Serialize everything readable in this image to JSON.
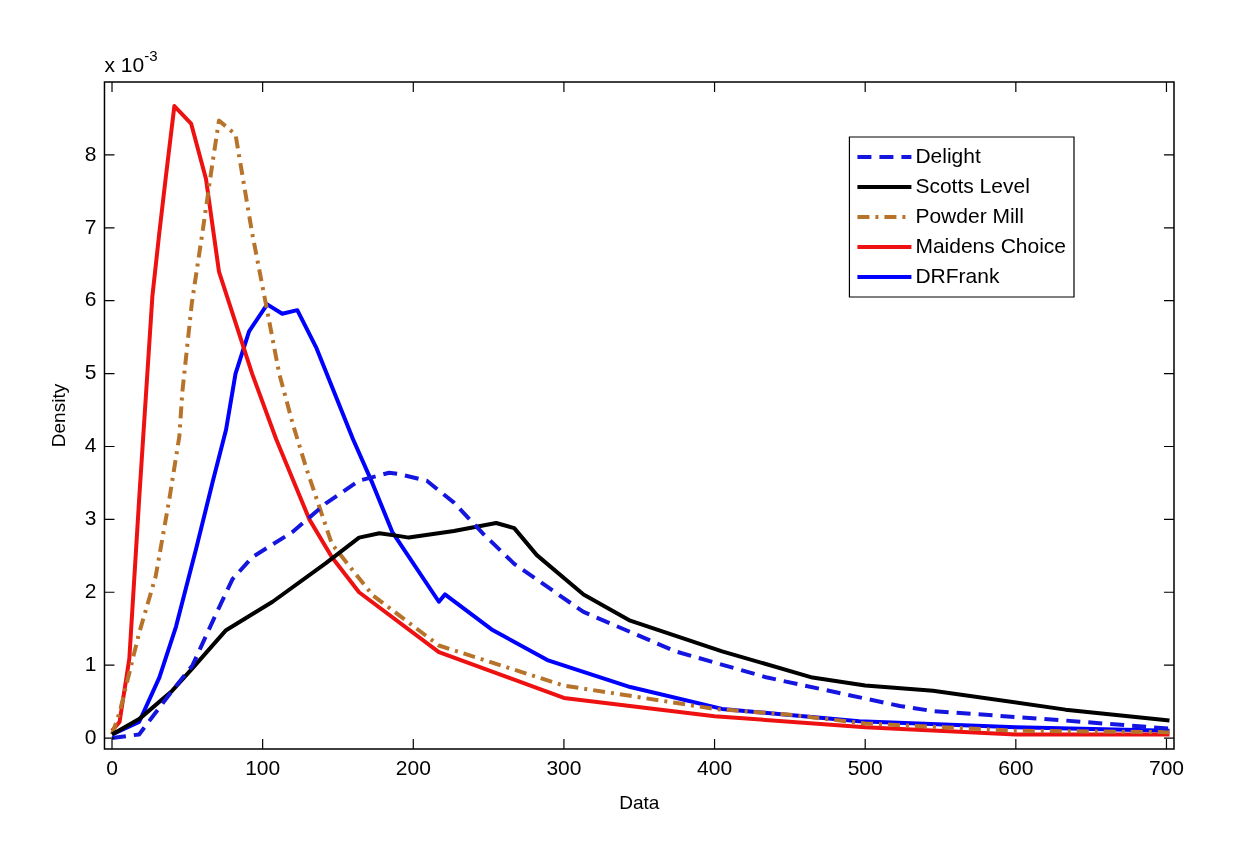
{
  "chart_data": {
    "type": "line",
    "xlabel": "Data",
    "ylabel": "Density",
    "annotations": [
      "x 10$^{-3}$"
    ],
    "xlim": [
      -5,
      705
    ],
    "xticks": [
      0,
      100,
      200,
      300,
      400,
      500,
      600,
      700
    ],
    "ylim": [
      -0.15,
      9
    ],
    "yticks": [
      0,
      1,
      2,
      3,
      4,
      5,
      6,
      7,
      8
    ],
    "grid": false,
    "legend": "top right",
    "marker": "none",
    "series": [
      {
        "name": "Delight",
        "color": "#1515e0",
        "line_style": "dashed",
        "x": [
          0,
          18,
          40,
          53.5,
          69,
          80,
          93,
          120,
          142,
          164,
          184,
          191,
          209,
          227,
          246,
          267,
          313,
          374,
          435,
          523,
          545,
          633,
          702
        ],
        "values": [
          0,
          0.05,
          0.65,
          1,
          1.7,
          2.18,
          2.48,
          2.83,
          3.22,
          3.53,
          3.64,
          3.62,
          3.53,
          3.23,
          2.81,
          2.39,
          1.73,
          1.19,
          0.83,
          0.44,
          0.37,
          0.24,
          0.13
        ]
      },
      {
        "name": "Scotts Level",
        "color": "#000000",
        "line_style": "solid",
        "x": [
          0,
          18,
          40,
          53.5,
          75.7,
          106.6,
          142,
          164,
          177.5,
          191,
          197,
          227,
          255,
          267,
          282,
          313,
          344,
          405,
          465,
          500,
          545,
          633,
          702
        ],
        "values": [
          0.05,
          0.26,
          0.65,
          0.96,
          1.48,
          1.87,
          2.4,
          2.75,
          2.81,
          2.77,
          2.75,
          2.84,
          2.95,
          2.88,
          2.51,
          1.97,
          1.61,
          1.19,
          0.83,
          0.72,
          0.65,
          0.39,
          0.24
        ]
      },
      {
        "name": "Powder Mill",
        "color": "#b8732a",
        "line_style": "dashdot",
        "x": [
          0,
          5,
          18,
          29,
          38,
          44.7,
          46.7,
          53,
          60,
          66.7,
          71,
          82,
          93,
          102,
          111,
          120,
          129,
          146,
          173,
          217,
          300,
          400,
          450,
          500,
          600,
          702
        ],
        "values": [
          0.05,
          0.35,
          1.44,
          2.22,
          3.27,
          4.14,
          4.75,
          5.97,
          6.93,
          7.89,
          8.47,
          8.28,
          6.93,
          5.97,
          5,
          4.31,
          3.7,
          2.66,
          1.96,
          1.27,
          0.72,
          0.4,
          0.32,
          0.2,
          0.1,
          0.08
        ]
      },
      {
        "name": "Maidens Choice",
        "color": "#ee1111",
        "line_style": "solid",
        "x": [
          0,
          5,
          11.5,
          18,
          26.8,
          31.4,
          35.8,
          41.4,
          52.5,
          62.4,
          71,
          93,
          109,
          131,
          146,
          164,
          217,
          300,
          400,
          500,
          600,
          702
        ],
        "values": [
          0.1,
          0.22,
          1.09,
          3.27,
          6.06,
          6.93,
          7.71,
          8.67,
          8.43,
          7.67,
          6.4,
          5,
          4.1,
          3,
          2.48,
          2,
          1.18,
          0.55,
          0.3,
          0.15,
          0.05,
          0.05
        ]
      },
      {
        "name": "DRFrank",
        "color": "#0000ff",
        "line_style": "solid",
        "x": [
          0,
          18,
          31.4,
          42.5,
          56,
          67,
          75.7,
          82,
          91,
          103,
          113,
          123,
          135.5,
          160,
          173,
          186,
          217,
          221,
          252,
          289,
          344,
          405,
          496,
          600,
          702
        ],
        "values": [
          0.05,
          0.22,
          0.83,
          1.53,
          2.61,
          3.53,
          4.23,
          5,
          5.58,
          5.95,
          5.82,
          5.87,
          5.36,
          4.1,
          3.49,
          2.83,
          1.87,
          1.97,
          1.49,
          1.07,
          0.7,
          0.4,
          0.23,
          0.15,
          0.1
        ]
      }
    ]
  }
}
